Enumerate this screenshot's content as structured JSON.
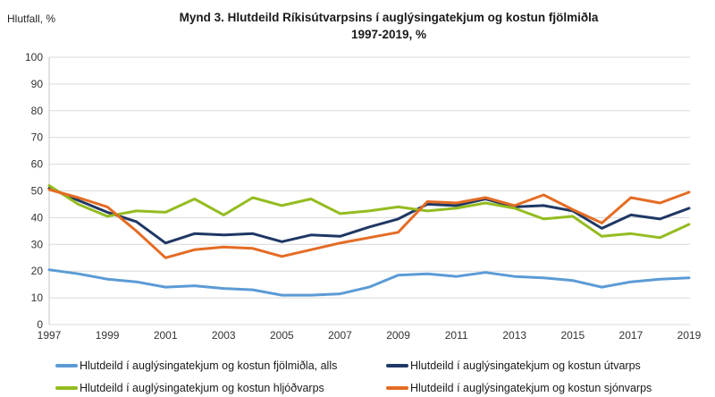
{
  "header": {
    "y_axis_unit_label": "Hlutfall, %",
    "title_line1": "Mynd 3. Hlutdeild Ríkisútvarpsins í auglýsingatekjum og kostun fjölmiðla",
    "title_line2": "1997-2019, %"
  },
  "chart_data": {
    "type": "line",
    "title": "Mynd 3. Hlutdeild Ríkisútvarpsins í auglýsingatekjum og kostun fjölmiðla 1997-2019, %",
    "ylabel": "Hlutfall, %",
    "xlabel": "",
    "grid": true,
    "legend_position": "bottom",
    "ylim": [
      0,
      100
    ],
    "y_ticks": [
      0,
      10,
      20,
      30,
      40,
      50,
      60,
      70,
      80,
      90,
      100
    ],
    "x": [
      1997,
      1998,
      1999,
      2000,
      2001,
      2002,
      2003,
      2004,
      2005,
      2006,
      2007,
      2008,
      2009,
      2010,
      2011,
      2012,
      2013,
      2014,
      2015,
      2016,
      2017,
      2018,
      2019
    ],
    "x_tick_labels": [
      "1997",
      "1999",
      "2001",
      "2003",
      "2005",
      "2007",
      "2009",
      "2011",
      "2013",
      "2015",
      "2017",
      "2019"
    ],
    "series": [
      {
        "key": "alls",
        "name": "Hlutdeild í auglýsingatekjum og kostun fjölmiðla, alls",
        "color": "#5B9BD5",
        "values": [
          20.5,
          19,
          17,
          16,
          14,
          14.5,
          13.5,
          13,
          11,
          11,
          11.5,
          14,
          18.5,
          19,
          18,
          19.5,
          18,
          17.5,
          16.5,
          14,
          16,
          17,
          17.5
        ]
      },
      {
        "key": "utvarps",
        "name": "Hlutdeild í auglýsingatekjum og kostun útvarps",
        "color": "#1F3864",
        "values": [
          51,
          46.5,
          42,
          38.5,
          30.5,
          34,
          33.5,
          34,
          31,
          33.5,
          33,
          36.5,
          39.5,
          45,
          44.5,
          47,
          44,
          44.5,
          42.5,
          36,
          41,
          39.5,
          43.5
        ]
      },
      {
        "key": "hljodvarps",
        "name": "Hlutdeild í auglýsingatekjum og kostun hljóðvarps",
        "color": "#94BC20",
        "values": [
          52,
          45,
          40.5,
          42.5,
          42,
          47,
          41,
          47.5,
          44.5,
          47,
          41.5,
          42.5,
          44,
          42.5,
          43.5,
          45.5,
          43.5,
          39.5,
          40.5,
          33,
          34,
          32.5,
          37.5
        ]
      },
      {
        "key": "sjonvarps",
        "name": "Hlutdeild í auglýsingatekjum og kostun sjónvarps",
        "color": "#E46C24",
        "values": [
          50.5,
          47.5,
          44,
          35,
          25,
          28,
          29,
          28.5,
          25.5,
          28,
          30.5,
          32.5,
          34.5,
          46,
          45.5,
          47.5,
          44.5,
          48.5,
          43,
          38,
          47.5,
          45.5,
          49.5
        ]
      }
    ],
    "style": {
      "grid_color": "#D9D9D9",
      "axis_color": "#C6C6C6",
      "tick_text_color": "#333333",
      "line_width": 3
    }
  }
}
